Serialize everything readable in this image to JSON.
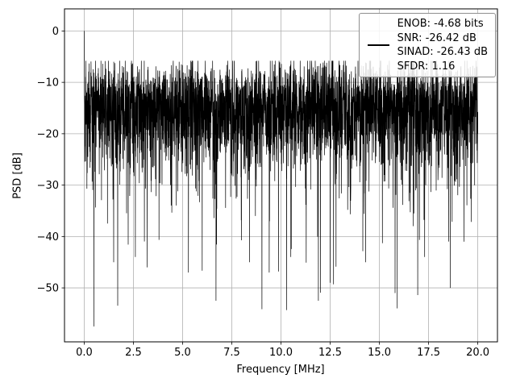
{
  "chart_data": {
    "type": "line",
    "title": "",
    "xlabel": "Frequency [MHz]",
    "ylabel": "PSD [dB]",
    "xlim": [
      -1,
      21
    ],
    "ylim": [
      -60.5,
      4.3
    ],
    "grid": true,
    "xticks": {
      "values": [
        0,
        2.5,
        5,
        7.5,
        10,
        12.5,
        15,
        17.5,
        20
      ],
      "labels": [
        "0.0",
        "2.5",
        "5.0",
        "7.5",
        "10.0",
        "12.5",
        "15.0",
        "17.5",
        "20.0"
      ]
    },
    "yticks": {
      "values": [
        0,
        -10,
        -20,
        -30,
        -40,
        -50
      ],
      "labels": [
        "0",
        "−10",
        "−20",
        "−30",
        "−40",
        "−50"
      ]
    },
    "legend": {
      "position": "upper right",
      "entries": [
        "ENOB: -4.68 bits",
        "SNR: -26.42 dB",
        "SINAD: -26.43 dB",
        "SFDR: 1.16"
      ]
    },
    "metrics": {
      "enob_bits": -4.68,
      "snr_db": -26.42,
      "sinad_db": -26.43,
      "sfdr": 1.16
    },
    "series": [
      {
        "name": "PSD",
        "color": "#000000",
        "line_width": 0.7
      }
    ],
    "signal_peak": {
      "x_mhz": 0,
      "psd_db": 0
    },
    "noise": {
      "description": "dense broadband noise floor across 0-20 MHz",
      "seed": 42,
      "n_points": 3500,
      "base_db": -13.5,
      "envelope_top_db": -5.8,
      "median_db": -15,
      "dense_band_bottom_db": -33,
      "min_spike_db": -57.5,
      "deep_spikes": [
        {
          "x_mhz": 0.5,
          "psd_db": -57.5
        },
        {
          "x_mhz": 1.5,
          "psd_db": -45
        },
        {
          "x_mhz": 2.6,
          "psd_db": -44
        },
        {
          "x_mhz": 3.2,
          "psd_db": -46
        },
        {
          "x_mhz": 5.3,
          "psd_db": -47
        },
        {
          "x_mhz": 6.7,
          "psd_db": -52.5
        },
        {
          "x_mhz": 8.4,
          "psd_db": -45
        },
        {
          "x_mhz": 9.4,
          "psd_db": -47
        },
        {
          "x_mhz": 10.5,
          "psd_db": -44
        },
        {
          "x_mhz": 11.9,
          "psd_db": -52.5
        },
        {
          "x_mhz": 12.5,
          "psd_db": -49
        },
        {
          "x_mhz": 14.3,
          "psd_db": -45
        },
        {
          "x_mhz": 15.8,
          "psd_db": -51
        },
        {
          "x_mhz": 17.3,
          "psd_db": -44
        },
        {
          "x_mhz": 18.6,
          "psd_db": -50
        },
        {
          "x_mhz": 19.3,
          "psd_db": -41
        }
      ]
    },
    "style": {
      "grid_color": "#b0b0b0",
      "frame_color": "#000000",
      "background": "#ffffff"
    }
  }
}
